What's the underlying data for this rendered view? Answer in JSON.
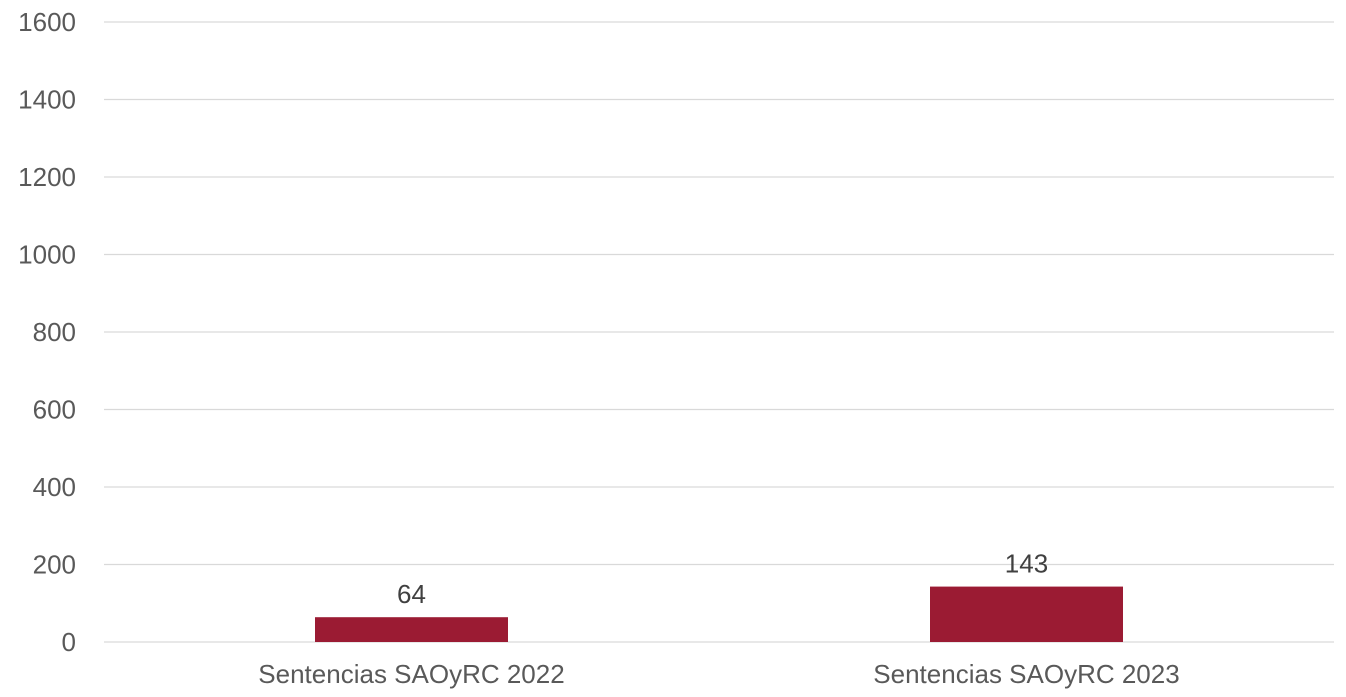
{
  "chart_data": {
    "type": "bar",
    "categories": [
      "Sentencias SAOyRC 2022",
      "Sentencias SAOyRC 2023"
    ],
    "series": [
      {
        "values": [
          64,
          143
        ],
        "color": "#9b1b33"
      }
    ],
    "ylim": [
      0,
      1600
    ],
    "yticks": [
      "0",
      "200",
      "400",
      "600",
      "800",
      "1000",
      "1200",
      "1400",
      "1600"
    ],
    "data_labels": [
      "64",
      "143"
    ],
    "grid": true,
    "legend": "none",
    "title": "",
    "xlabel": "",
    "ylabel": ""
  }
}
